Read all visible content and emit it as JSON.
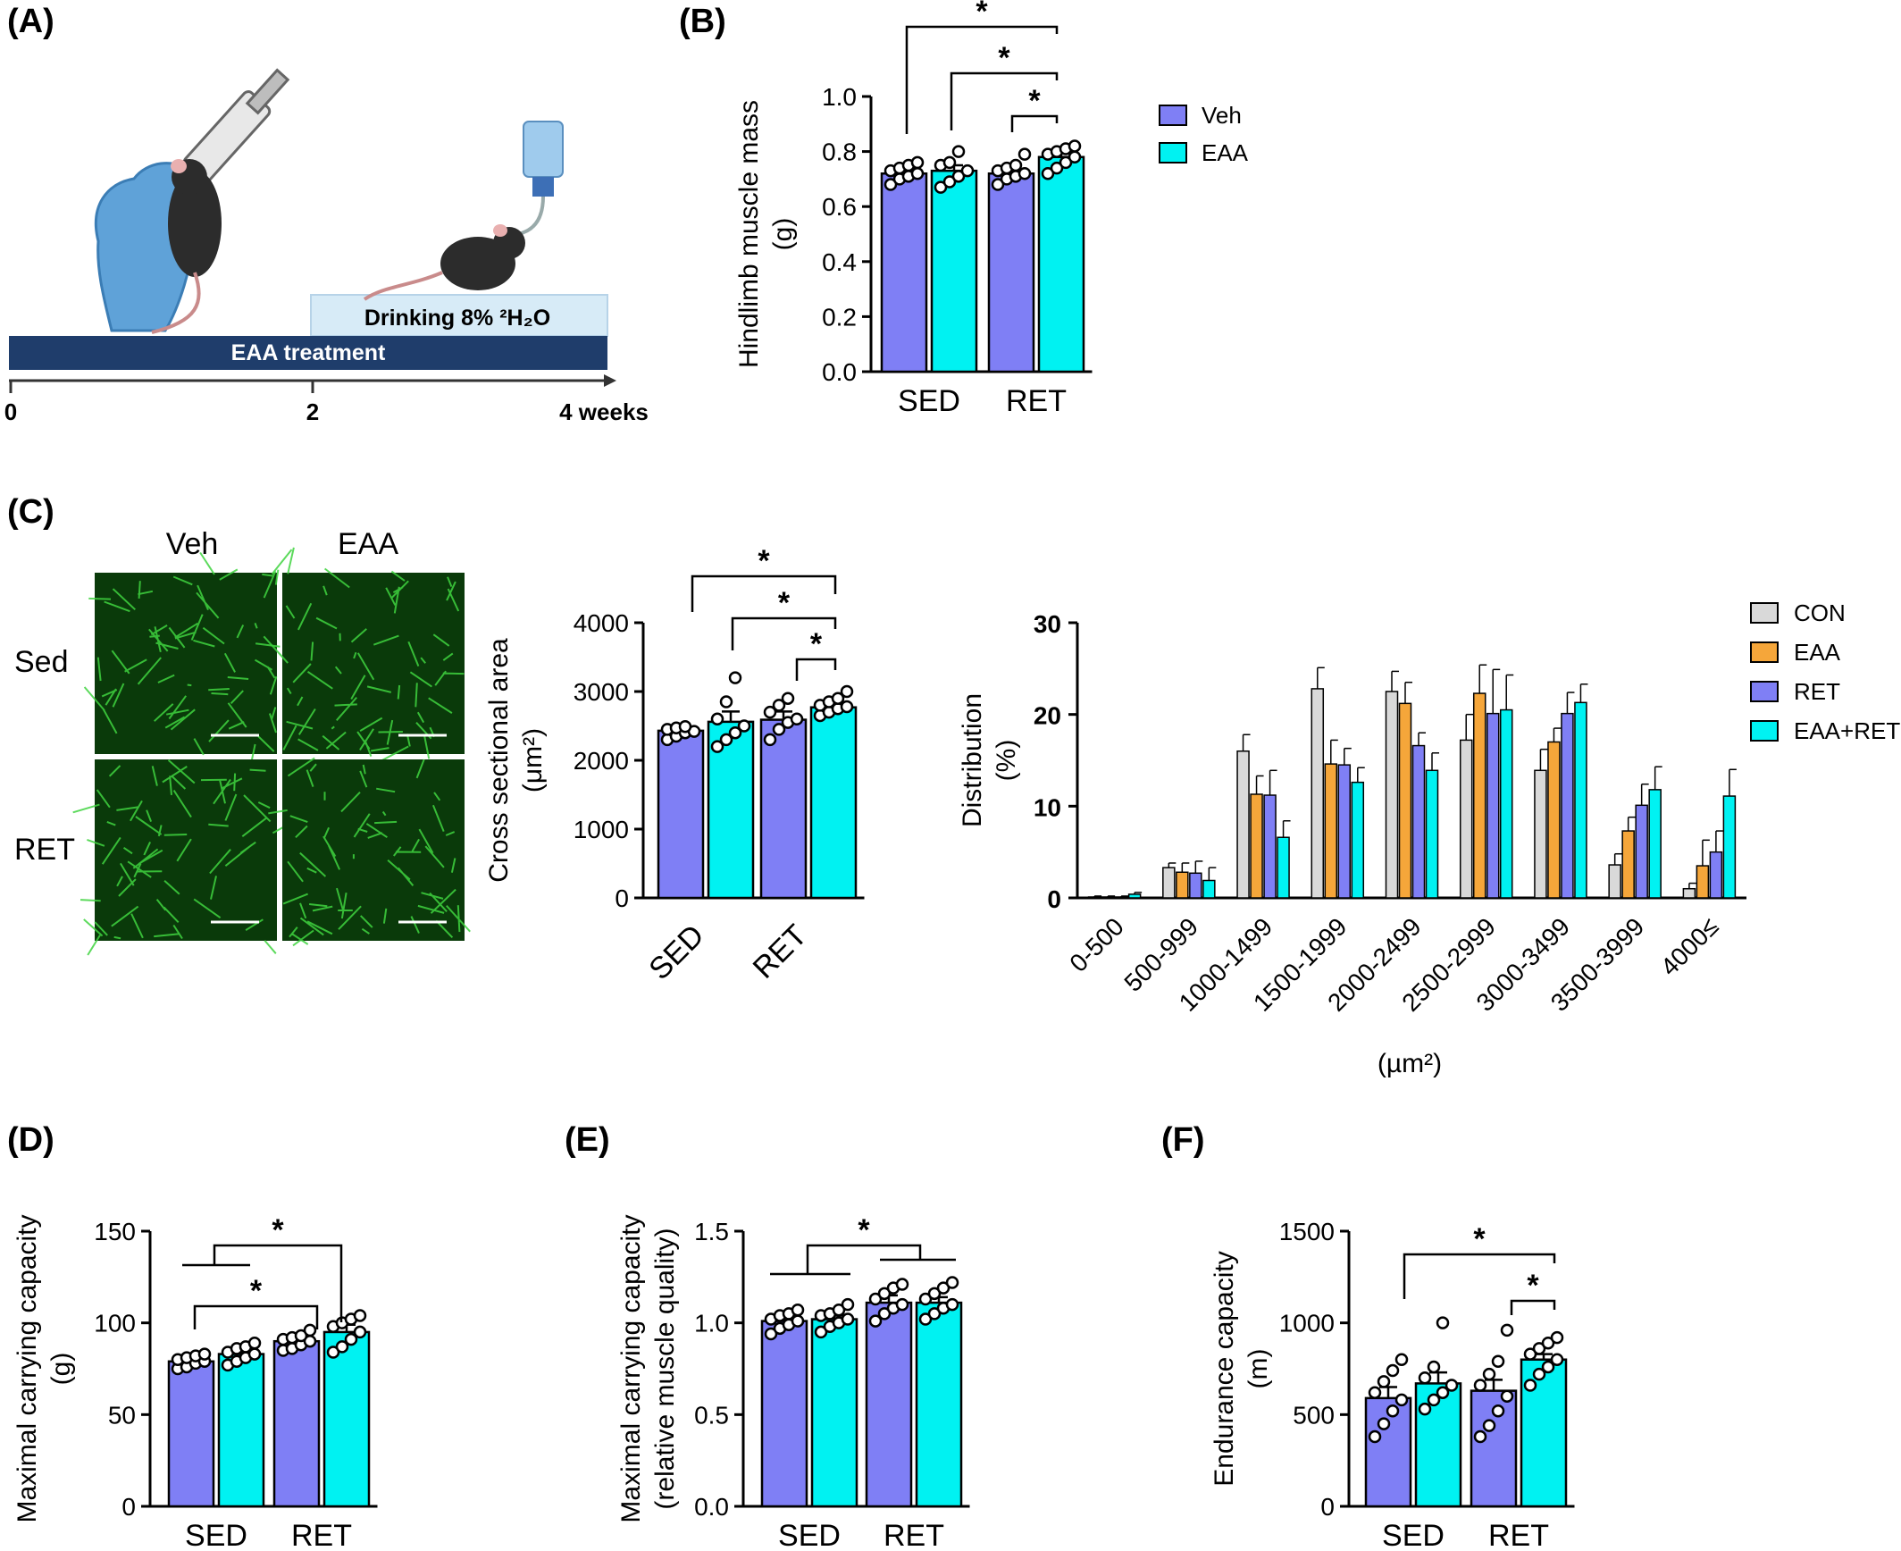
{
  "panels": {
    "a": {
      "letter": "(A)",
      "treatment_label": "EAA treatment",
      "water_label": "Drinking 8% ²H₂O",
      "timeline_ticks": [
        "0",
        "2",
        "4 weeks"
      ]
    },
    "b": {
      "letter": "(B)"
    },
    "c": {
      "letter": "(C)",
      "col_labels": [
        "Veh",
        "EAA"
      ],
      "row_labels": [
        "Sed",
        "RET"
      ]
    },
    "d": {
      "letter": "(D)"
    },
    "e": {
      "letter": "(E)"
    },
    "f": {
      "letter": "(F)"
    }
  },
  "colors": {
    "veh": "#7F7FF5",
    "eaa": "#00F2F2",
    "con": "#D9D9D9",
    "eaa_orange": "#F5A63A",
    "ret": "#7F7FF5",
    "eaa_ret": "#00F2F2",
    "micro_bg": "#0a3a0a",
    "micro_line": "#3fd43f",
    "timeline_bar": "#1f3d6b",
    "water_box": "#d7ebf7"
  },
  "chart_data": [
    {
      "id": "b",
      "type": "bar",
      "ylabel": "Hindlimb muscle mass",
      "ylabel2": "(g)",
      "categories": [
        "SED",
        "RET"
      ],
      "ylim": [
        0,
        1.0
      ],
      "yticks": [
        "0.0",
        "0.2",
        "0.4",
        "0.6",
        "0.8",
        "1.0"
      ],
      "legend": [
        "Veh",
        "EAA"
      ],
      "series": [
        {
          "name": "Veh",
          "color": "#7F7FF5",
          "values": [
            0.72,
            0.72
          ],
          "err": [
            0.02,
            0.02
          ],
          "points": [
            [
              0.68,
              0.7,
              0.71,
              0.72,
              0.73,
              0.74,
              0.75,
              0.76
            ],
            [
              0.68,
              0.7,
              0.71,
              0.72,
              0.73,
              0.74,
              0.75,
              0.79
            ]
          ]
        },
        {
          "name": "EAA",
          "color": "#00F2F2",
          "values": [
            0.73,
            0.78
          ],
          "err": [
            0.02,
            0.02
          ],
          "points": [
            [
              0.67,
              0.69,
              0.71,
              0.73,
              0.75,
              0.76,
              0.8
            ],
            [
              0.72,
              0.74,
              0.76,
              0.78,
              0.79,
              0.8,
              0.81,
              0.82
            ]
          ]
        }
      ],
      "sig": [
        "*",
        "*",
        "*"
      ]
    },
    {
      "id": "c-bar",
      "type": "bar",
      "ylabel": "Cross sectional area",
      "ylabel2": "(μm²)",
      "categories": [
        "SED",
        "RET"
      ],
      "ylim": [
        0,
        4000
      ],
      "yticks": [
        "0",
        "1000",
        "2000",
        "3000",
        "4000"
      ],
      "series": [
        {
          "name": "Veh",
          "color": "#7F7FF5",
          "values": [
            2430,
            2590
          ],
          "err": [
            40,
            120
          ],
          "points": [
            [
              2300,
              2350,
              2400,
              2420,
              2450,
              2470,
              2490
            ],
            [
              2300,
              2450,
              2550,
              2600,
              2700,
              2800,
              2900
            ]
          ]
        },
        {
          "name": "EAA",
          "color": "#00F2F2",
          "values": [
            2560,
            2770
          ],
          "err": [
            150,
            50
          ],
          "points": [
            [
              2200,
              2300,
              2400,
              2500,
              2600,
              2850,
              3200
            ],
            [
              2650,
              2700,
              2750,
              2780,
              2800,
              2850,
              2900,
              3000
            ]
          ]
        }
      ],
      "sig": [
        "*",
        "*",
        "*"
      ]
    },
    {
      "id": "c-dist",
      "type": "bar",
      "ylabel": "Distribution",
      "ylabel2": "(%)",
      "xlabel": "(µm²)",
      "categories": [
        "0-500",
        "500-999",
        "1000-1499",
        "1500-1999",
        "2000-2499",
        "2500-2999",
        "3000-3499",
        "3500-3999",
        "4000≤"
      ],
      "ylim": [
        0,
        30
      ],
      "yticks": [
        "0",
        "10",
        "20",
        "30"
      ],
      "legend": [
        "CON",
        "EAA",
        "RET",
        "EAA+RET"
      ],
      "series": [
        {
          "name": "CON",
          "color": "#D9D9D9",
          "values": [
            0.1,
            3.3,
            16.0,
            22.8,
            22.5,
            17.2,
            13.9,
            3.6,
            1.0
          ],
          "err": [
            0.1,
            0.5,
            1.8,
            2.3,
            2.2,
            2.8,
            2.3,
            1.2,
            0.6
          ]
        },
        {
          "name": "EAA",
          "color": "#F5A63A",
          "values": [
            0.1,
            2.8,
            11.3,
            14.6,
            21.2,
            22.3,
            17.0,
            7.3,
            3.5
          ],
          "err": [
            0.1,
            1.0,
            2.0,
            2.6,
            2.3,
            3.1,
            1.5,
            1.5,
            2.8
          ]
        },
        {
          "name": "RET",
          "color": "#7F7FF5",
          "values": [
            0.1,
            2.7,
            11.2,
            14.5,
            16.6,
            20.1,
            20.1,
            10.1,
            5.0
          ],
          "err": [
            0.1,
            1.3,
            2.7,
            1.8,
            1.4,
            4.8,
            2.3,
            2.3,
            2.3
          ]
        },
        {
          "name": "EAA+RET",
          "color": "#00F2F2",
          "values": [
            0.4,
            1.9,
            6.6,
            12.6,
            13.9,
            20.5,
            21.3,
            11.8,
            11.1
          ],
          "err": [
            0.2,
            1.4,
            1.8,
            1.6,
            1.9,
            3.8,
            2.0,
            2.5,
            2.9
          ]
        }
      ]
    },
    {
      "id": "d",
      "type": "bar",
      "ylabel": "Maximal carrying capacity",
      "ylabel2": "(g)",
      "categories": [
        "SED",
        "RET"
      ],
      "ylim": [
        0,
        150
      ],
      "yticks": [
        "0",
        "50",
        "100",
        "150"
      ],
      "series": [
        {
          "name": "Veh",
          "color": "#7F7FF5",
          "values": [
            79,
            90
          ],
          "err": [
            1.5,
            2.0
          ],
          "points": [
            [
              75,
              76,
              78,
              79,
              80,
              81,
              82,
              83
            ],
            [
              85,
              86,
              88,
              90,
              91,
              92,
              93,
              96
            ]
          ]
        },
        {
          "name": "EAA",
          "color": "#00F2F2",
          "values": [
            83,
            95
          ],
          "err": [
            2.0,
            4.0
          ],
          "points": [
            [
              77,
              79,
              81,
              83,
              84,
              86,
              87,
              89
            ],
            [
              84,
              87,
              91,
              95,
              98,
              100,
              102,
              104
            ]
          ]
        }
      ],
      "sig": [
        "*",
        "*"
      ]
    },
    {
      "id": "e",
      "type": "bar",
      "ylabel": "Maximal carrying capacity",
      "ylabel2": "(relative muscle quality)",
      "categories": [
        "SED",
        "RET"
      ],
      "ylim": [
        0,
        1.5
      ],
      "yticks": [
        "0.0",
        "0.5",
        "1.0",
        "1.5"
      ],
      "series": [
        {
          "name": "Veh",
          "color": "#7F7FF5",
          "values": [
            1.01,
            1.11
          ],
          "err": [
            0.02,
            0.04
          ],
          "points": [
            [
              0.94,
              0.97,
              0.99,
              1.01,
              1.02,
              1.04,
              1.05,
              1.07
            ],
            [
              1.01,
              1.05,
              1.08,
              1.1,
              1.13,
              1.16,
              1.19,
              1.21
            ]
          ]
        },
        {
          "name": "EAA",
          "color": "#00F2F2",
          "values": [
            1.02,
            1.11
          ],
          "err": [
            0.02,
            0.03
          ],
          "points": [
            [
              0.95,
              0.98,
              1.0,
              1.02,
              1.04,
              1.05,
              1.07,
              1.1
            ],
            [
              1.02,
              1.05,
              1.08,
              1.1,
              1.13,
              1.16,
              1.19,
              1.22
            ]
          ]
        }
      ],
      "sig": [
        "*"
      ]
    },
    {
      "id": "f",
      "type": "bar",
      "ylabel": "Endurance capacity",
      "ylabel2": "(m)",
      "categories": [
        "SED",
        "RET"
      ],
      "ylim": [
        0,
        1500
      ],
      "yticks": [
        "0",
        "500",
        "1000",
        "1500"
      ],
      "series": [
        {
          "name": "Veh",
          "color": "#7F7FF5",
          "values": [
            590,
            630
          ],
          "err": [
            60,
            60
          ],
          "points": [
            [
              380,
              450,
              520,
              580,
              620,
              680,
              740,
              800
            ],
            [
              380,
              440,
              520,
              600,
              660,
              720,
              790,
              960
            ]
          ]
        },
        {
          "name": "EAA",
          "color": "#00F2F2",
          "values": [
            670,
            800
          ],
          "err": [
            60,
            30
          ],
          "points": [
            [
              530,
              580,
              620,
              660,
              700,
              760,
              1000
            ],
            [
              660,
              720,
              760,
              800,
              830,
              860,
              890,
              920
            ]
          ]
        }
      ],
      "sig": [
        "*",
        "*"
      ]
    }
  ]
}
